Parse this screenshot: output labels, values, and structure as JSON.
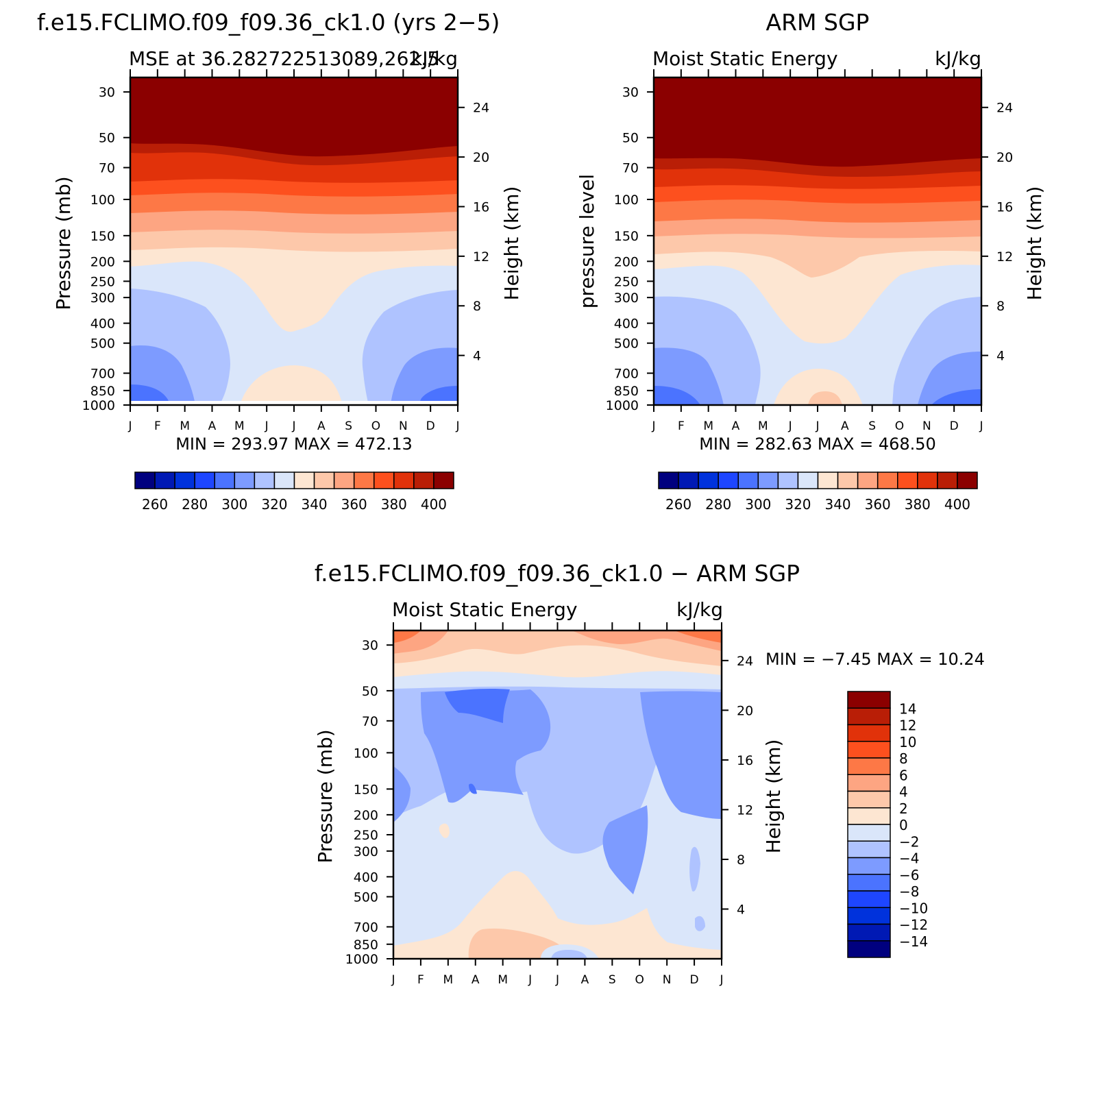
{
  "chart_data": [
    {
      "type": "heatmap",
      "title": "f.e15.FCLIMO.f09_f09.36_ck1.0 (yrs 2−5)",
      "subtitle_left": "MSE at 36.282722513089,262.5",
      "subtitle_right": "kJ/kg",
      "ylabel": "Pressure (mb)",
      "ylabel_right": "Height (km)",
      "x_ticks": [
        "J",
        "F",
        "M",
        "A",
        "M",
        "J",
        "J",
        "A",
        "S",
        "O",
        "N",
        "D",
        "J"
      ],
      "y_ticks": [
        30,
        50,
        70,
        100,
        150,
        200,
        250,
        300,
        400,
        500,
        700,
        850,
        1000
      ],
      "y_right_ticks": [
        24,
        20,
        16,
        12,
        8,
        4
      ],
      "stats": "MIN =  293.97  MAX =  472.13",
      "min": 293.97,
      "max": 472.13,
      "colorbar_labels": [
        "260",
        "280",
        "300",
        "320",
        "340",
        "360",
        "380",
        "400"
      ],
      "contour_levels": [
        250,
        260,
        270,
        280,
        290,
        300,
        310,
        320,
        330,
        340,
        350,
        360,
        370,
        380,
        390,
        400
      ]
    },
    {
      "type": "heatmap",
      "title": "ARM SGP",
      "subtitle_left": "Moist Static Energy",
      "subtitle_right": "kJ/kg",
      "ylabel": "pressure level",
      "ylabel_right": "Height (km)",
      "x_ticks": [
        "J",
        "F",
        "M",
        "A",
        "M",
        "J",
        "J",
        "A",
        "S",
        "O",
        "N",
        "D",
        "J"
      ],
      "y_ticks": [
        30,
        50,
        70,
        100,
        150,
        200,
        250,
        300,
        400,
        500,
        700,
        850,
        1000
      ],
      "y_right_ticks": [
        24,
        20,
        16,
        12,
        8,
        4
      ],
      "stats": "MIN =  282.63  MAX =  468.50",
      "min": 282.63,
      "max": 468.5,
      "colorbar_labels": [
        "260",
        "280",
        "300",
        "320",
        "340",
        "360",
        "380",
        "400"
      ],
      "contour_levels": [
        250,
        260,
        270,
        280,
        290,
        300,
        310,
        320,
        330,
        340,
        350,
        360,
        370,
        380,
        390,
        400
      ]
    },
    {
      "type": "heatmap",
      "title": "f.e15.FCLIMO.f09_f09.36_ck1.0 − ARM SGP",
      "subtitle_left": "Moist Static Energy",
      "subtitle_right": "kJ/kg",
      "ylabel": "Pressure (mb)",
      "ylabel_right": "Height (km)",
      "x_ticks": [
        "J",
        "F",
        "M",
        "A",
        "M",
        "J",
        "J",
        "A",
        "S",
        "O",
        "N",
        "D",
        "J"
      ],
      "y_ticks": [
        30,
        50,
        70,
        100,
        150,
        200,
        250,
        300,
        400,
        500,
        700,
        850,
        1000
      ],
      "y_right_ticks": [
        24,
        20,
        16,
        12,
        8,
        4
      ],
      "stats": "MIN =   −7.45  MAX =   10.24",
      "min": -7.45,
      "max": 10.24,
      "colorbar_labels": [
        "14",
        "12",
        "10",
        "8",
        "6",
        "4",
        "2",
        "0",
        "−2",
        "−4",
        "−6",
        "−8",
        "−10",
        "−12",
        "−14"
      ],
      "contour_levels": [
        -14,
        -12,
        -10,
        -8,
        -6,
        -4,
        -2,
        0,
        2,
        4,
        6,
        8,
        10,
        12,
        14
      ]
    }
  ],
  "palette": [
    "#00007f",
    "#0019b4",
    "#0032dc",
    "#1e46ff",
    "#4b73ff",
    "#7d9bff",
    "#afc3ff",
    "#dae6fa",
    "#fde6d2",
    "#fdc8aa",
    "#fda582",
    "#fd7846",
    "#fd501e",
    "#e1320a",
    "#b91e06",
    "#8b0000"
  ],
  "diff_palette": [
    "#8b0000",
    "#b91e06",
    "#e1320a",
    "#fd501e",
    "#fd7846",
    "#fda582",
    "#fdc8aa",
    "#fde6d2",
    "#dae6fa",
    "#afc3ff",
    "#7d9bff",
    "#4b73ff",
    "#1e46ff",
    "#0032dc",
    "#0019b4",
    "#00007f"
  ]
}
